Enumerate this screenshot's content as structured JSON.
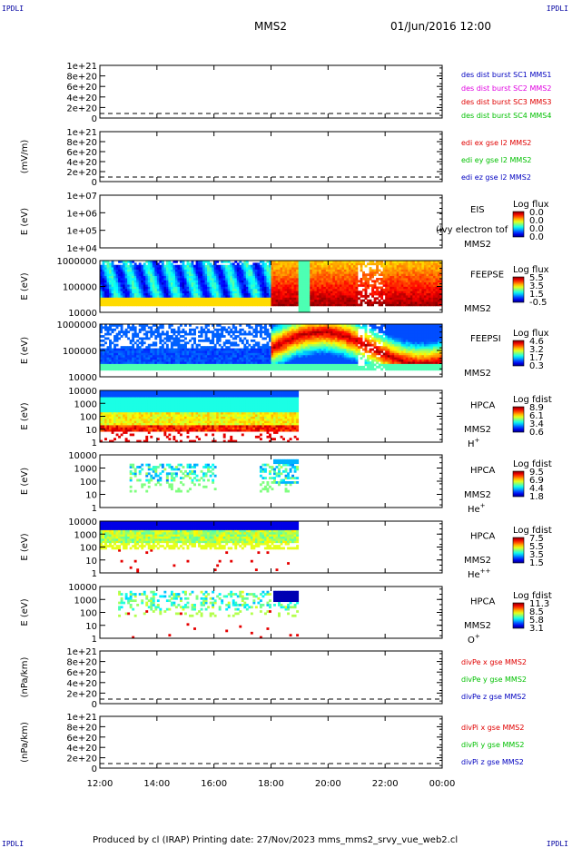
{
  "corner_marks": {
    "tl": "IPDLI",
    "tr": "IPDLI",
    "bl": "IPDLI",
    "br": "IPDLI"
  },
  "header": {
    "spacecraft": "MMS2",
    "datetime": "01/Jun/2016 12:00"
  },
  "footer": "Produced by cl (IRAP)   Printing date: 27/Nov/2023   mms_mms2_srvy_vue_web2.cl",
  "colors": {
    "red": "#e00000",
    "green": "#00c000",
    "blue": "#0000c0",
    "magenta": "#e000e0",
    "orange": "#ff8000"
  },
  "chart_data": {
    "type": "multi-panel time series and spectrograms",
    "x_ticks": [
      "12:00",
      "14:00",
      "16:00",
      "18:00",
      "20:00",
      "22:00",
      "00:00"
    ],
    "x_range_hours": [
      12,
      24
    ],
    "panels": [
      {
        "id": "p1",
        "type": "line",
        "ylabel": "",
        "yticks": [
          "1e+21",
          "8e+20",
          "6e+20",
          "4e+20",
          "2e+20",
          "0"
        ],
        "legend": [
          {
            "text": "des dist burst SC1 MMS1",
            "color": "#0000c0"
          },
          {
            "text": "des dist burst SC2 MMS2",
            "color": "#e000e0"
          },
          {
            "text": "des dist burst SC3 MMS3",
            "color": "#e00000"
          },
          {
            "text": "des dist burst SC4 MMS4",
            "color": "#00c000"
          }
        ]
      },
      {
        "id": "p2",
        "type": "line",
        "ylabel": "(mV/m)",
        "yticks": [
          "1e+21",
          "8e+20",
          "6e+20",
          "4e+20",
          "2e+20",
          "0"
        ],
        "legend": [
          {
            "text": "edi ex gse l2 MMS2",
            "color": "#e00000"
          },
          {
            "text": "edi ey gse l2 MMS2",
            "color": "#00c000"
          },
          {
            "text": "edi ez gse l2 MMS2",
            "color": "#0000c0"
          }
        ]
      },
      {
        "id": "p3",
        "type": "heatmap",
        "ylabel": "E (eV)",
        "yticks": [
          "1e+07",
          "1e+06",
          "1e+05",
          "1e+04"
        ],
        "instrument": [
          "EIS",
          "MMS2"
        ],
        "overlay_text": "(ivy electron tof",
        "cbar_title": "Log flux",
        "cbar_ticks": [
          "0.0",
          "0.0",
          "0.0",
          "0.0"
        ]
      },
      {
        "id": "p4",
        "type": "heatmap",
        "ylabel": "E (eV)",
        "yticks": [
          "1000000",
          "100000",
          "10000"
        ],
        "instrument": [
          "FEEPSE",
          "MMS2"
        ],
        "cbar_title": "Log flux",
        "cbar_ticks": [
          "5.5",
          "3.5",
          "1.5",
          "-0.5"
        ]
      },
      {
        "id": "p5",
        "type": "heatmap",
        "ylabel": "E (eV)",
        "yticks": [
          "1000000",
          "100000",
          "10000"
        ],
        "instrument": [
          "FEEPSI",
          "MMS2"
        ],
        "cbar_title": "Log flux",
        "cbar_ticks": [
          "4.6",
          "3.2",
          "1.7",
          "0.3"
        ]
      },
      {
        "id": "p6",
        "type": "heatmap",
        "ylabel": "E (eV)",
        "yticks": [
          "10000",
          "1000",
          "100",
          "10",
          "1"
        ],
        "instrument": [
          "HPCA",
          "MMS2"
        ],
        "species": "H",
        "species_sup": "+",
        "cbar_title": "Log fdist",
        "cbar_ticks": [
          "8.9",
          "6.1",
          "3.4",
          "0.6"
        ]
      },
      {
        "id": "p7",
        "type": "heatmap",
        "ylabel": "E (eV)",
        "yticks": [
          "10000",
          "1000",
          "100",
          "10",
          "1"
        ],
        "instrument": [
          "HPCA",
          "MMS2"
        ],
        "species": "He",
        "species_sup": "+",
        "cbar_title": "Log fdist",
        "cbar_ticks": [
          "9.5",
          "6.9",
          "4.4",
          "1.8"
        ]
      },
      {
        "id": "p8",
        "type": "heatmap",
        "ylabel": "E (eV)",
        "yticks": [
          "10000",
          "1000",
          "100",
          "10",
          "1"
        ],
        "instrument": [
          "HPCA",
          "MMS2"
        ],
        "species": "He",
        "species_sup": "++",
        "cbar_title": "Log fdist",
        "cbar_ticks": [
          "7.5",
          "5.5",
          "3.5",
          "1.5"
        ]
      },
      {
        "id": "p9",
        "type": "heatmap",
        "ylabel": "E (eV)",
        "yticks": [
          "10000",
          "1000",
          "100",
          "10",
          "1"
        ],
        "instrument": [
          "HPCA",
          "MMS2"
        ],
        "species": "O",
        "species_sup": "+",
        "cbar_title": "Log fdist",
        "cbar_ticks": [
          "11.3",
          "8.5",
          "5.8",
          "3.1"
        ]
      },
      {
        "id": "p10",
        "type": "line",
        "ylabel": "(nPa/km)",
        "yticks": [
          "1e+21",
          "8e+20",
          "6e+20",
          "4e+20",
          "2e+20",
          "0"
        ],
        "legend": [
          {
            "text": "divPe x gse MMS2",
            "color": "#e00000"
          },
          {
            "text": "divPe y gse MMS2",
            "color": "#00c000"
          },
          {
            "text": "divPe z gse MMS2",
            "color": "#0000c0"
          }
        ]
      },
      {
        "id": "p11",
        "type": "line",
        "ylabel": "(nPa/km)",
        "yticks": [
          "1e+21",
          "8e+20",
          "6e+20",
          "4e+20",
          "2e+20",
          "0"
        ],
        "legend": [
          {
            "text": "divPi x gse MMS2",
            "color": "#e00000"
          },
          {
            "text": "divPi y gse MMS2",
            "color": "#00c000"
          },
          {
            "text": "divPi z gse MMS2",
            "color": "#0000c0"
          }
        ]
      }
    ]
  }
}
